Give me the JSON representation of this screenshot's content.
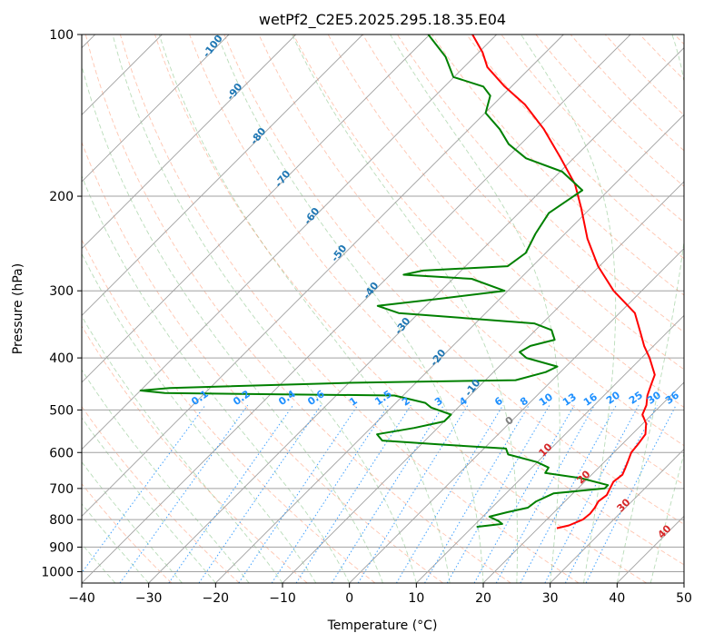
{
  "chart_data": {
    "type": "line",
    "title": "wetPf2_C2E5.2025.295.18.35.E04",
    "xlabel": "Temperature (°C)",
    "ylabel": "Pressure (hPa)",
    "xlim": [
      -40,
      50
    ],
    "ylim": [
      1050,
      100
    ],
    "y_scale": "log",
    "skew": true,
    "grid": true,
    "x_ticks": [
      -40,
      -30,
      -20,
      -10,
      0,
      10,
      20,
      30,
      40,
      50
    ],
    "y_ticks": [
      100,
      200,
      300,
      400,
      500,
      600,
      700,
      800,
      900,
      1000
    ],
    "series": [
      {
        "color": "#ff0000",
        "points": [
          [
            830,
            22.8
          ],
          [
            820,
            24.2
          ],
          [
            800,
            25.4
          ],
          [
            780,
            25.6
          ],
          [
            760,
            25.4
          ],
          [
            740,
            25.0
          ],
          [
            720,
            25.3
          ],
          [
            700,
            24.8
          ],
          [
            680,
            24.3
          ],
          [
            660,
            24.6
          ],
          [
            640,
            24.0
          ],
          [
            625,
            23.5
          ],
          [
            600,
            22.6
          ],
          [
            580,
            22.4
          ],
          [
            555,
            22.0
          ],
          [
            530,
            20.5
          ],
          [
            510,
            18.6
          ],
          [
            490,
            17.8
          ],
          [
            470,
            16.5
          ],
          [
            450,
            15.5
          ],
          [
            430,
            14.5
          ],
          [
            400,
            11.2
          ],
          [
            380,
            8.6
          ],
          [
            360,
            6.2
          ],
          [
            330,
            2.3
          ],
          [
            300,
            -4.2
          ],
          [
            270,
            -10.2
          ],
          [
            240,
            -15.9
          ],
          [
            210,
            -21.5
          ],
          [
            190,
            -25.9
          ],
          [
            170,
            -31.9
          ],
          [
            150,
            -38.8
          ],
          [
            135,
            -45.3
          ],
          [
            125,
            -51.0
          ],
          [
            115,
            -56.5
          ],
          [
            108,
            -59.4
          ],
          [
            100,
            -63.6
          ]
        ]
      },
      {
        "color": "#008000",
        "points": [
          [
            825,
            10.6
          ],
          [
            815,
            14.0
          ],
          [
            805,
            13.0
          ],
          [
            790,
            11.0
          ],
          [
            775,
            13.0
          ],
          [
            760,
            15.4
          ],
          [
            740,
            15.7
          ],
          [
            715,
            17.1
          ],
          [
            700,
            24.0
          ],
          [
            690,
            24.0
          ],
          [
            670,
            19.0
          ],
          [
            655,
            12.8
          ],
          [
            640,
            12.5
          ],
          [
            625,
            9.9
          ],
          [
            605,
            4.5
          ],
          [
            590,
            3.3
          ],
          [
            580,
            -6.9
          ],
          [
            570,
            -16.4
          ],
          [
            555,
            -18.1
          ],
          [
            540,
            -13.5
          ],
          [
            525,
            -10.0
          ],
          [
            510,
            -10.0
          ],
          [
            495,
            -14.0
          ],
          [
            485,
            -15.6
          ],
          [
            470,
            -21.3
          ],
          [
            465,
            -56.0
          ],
          [
            460,
            -60.0
          ],
          [
            455,
            -56.0
          ],
          [
            445,
            -30.0
          ],
          [
            440,
            -5.5
          ],
          [
            425,
            -2.2
          ],
          [
            415,
            -1.3
          ],
          [
            400,
            -7.2
          ],
          [
            390,
            -9.1
          ],
          [
            380,
            -8.4
          ],
          [
            370,
            -5.7
          ],
          [
            355,
            -7.6
          ],
          [
            345,
            -11.2
          ],
          [
            330,
            -33.0
          ],
          [
            320,
            -37.2
          ],
          [
            310,
            -28.7
          ],
          [
            300,
            -20.5
          ],
          [
            285,
            -27.2
          ],
          [
            280,
            -38.0
          ],
          [
            275,
            -35.7
          ],
          [
            270,
            -23.7
          ],
          [
            255,
            -23.0
          ],
          [
            235,
            -24.4
          ],
          [
            215,
            -25.5
          ],
          [
            195,
            -23.9
          ],
          [
            180,
            -29.7
          ],
          [
            170,
            -37.1
          ],
          [
            160,
            -41.8
          ],
          [
            150,
            -45.4
          ],
          [
            140,
            -49.9
          ],
          [
            130,
            -51.8
          ],
          [
            125,
            -54.2
          ],
          [
            120,
            -60.1
          ],
          [
            110,
            -64.3
          ],
          [
            100,
            -70.2
          ]
        ]
      }
    ],
    "mixing_ratio_labels": [
      "0.1",
      "0.2",
      "0.4",
      "0.6",
      "1",
      "1.5",
      "2",
      "3",
      "4",
      "6",
      "8",
      "10",
      "13",
      "16",
      "20",
      "25",
      "30",
      "36"
    ],
    "dry_adiabat_labels": [
      "-100",
      "-90",
      "-80",
      "-70",
      "-60",
      "-50",
      "-40",
      "-30",
      "-20",
      "-10"
    ],
    "moist_adiabat_labels": [
      "10",
      "20",
      "30",
      "40"
    ],
    "zero_label": "0"
  }
}
